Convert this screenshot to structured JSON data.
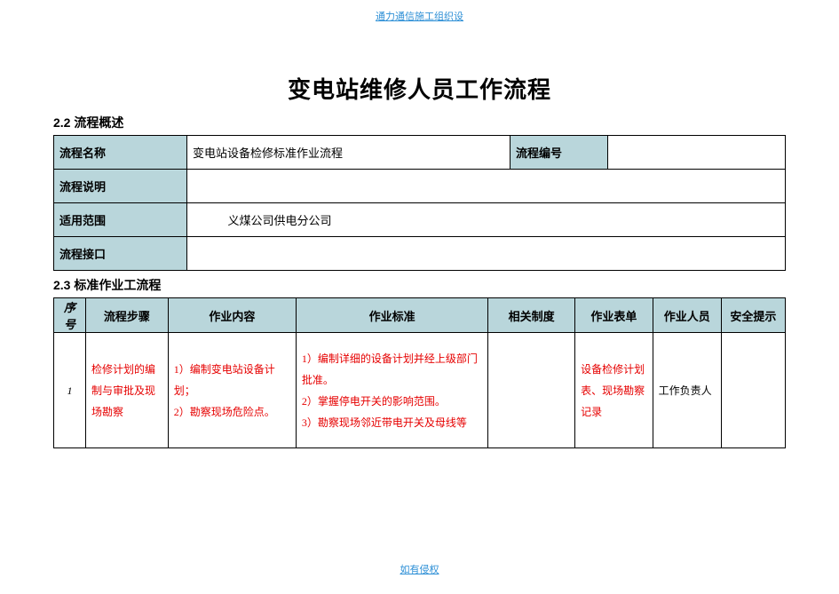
{
  "colors": {
    "header_bg": "#b9d6db",
    "link_color": "#2d8fd6",
    "red_text": "#e60000",
    "border": "#000000",
    "page_bg": "#ffffff"
  },
  "top_watermark": "通力通信施工组织设",
  "bottom_watermark": "如有侵权",
  "title": "变电站维修人员工作流程",
  "section_2_2": "2.2 流程概述",
  "overview": {
    "labels": {
      "name": "流程名称",
      "desc": "流程说明",
      "scope": "适用范围",
      "iface": "流程接口",
      "code": "流程编号"
    },
    "name_value": "变电站设备检修标准作业流程",
    "code_value": "",
    "desc_value": "",
    "scope_value": "义煤公司供电分公司",
    "iface_value": ""
  },
  "section_2_3": "2.3 标准作业工流程",
  "workflow": {
    "headers": {
      "seq": "序号",
      "step": "流程步骤",
      "work": "作业内容",
      "std": "作业标准",
      "rule": "相关制度",
      "form": "作业表单",
      "staff": "作业人员",
      "safe": "安全提示"
    },
    "rows": [
      {
        "seq": "1",
        "step": "检修计划的编制与审批及现场勘察",
        "work": "1）编制变电站设备计划；\n2）勘察现场危险点。",
        "std": "1）编制详细的设备计划并经上级部门批准。\n2）掌握停电开关的影响范围。\n3）勘察现场邻近带电开关及母线等",
        "rule": "",
        "form": "设备检修计划表、现场勘察记录",
        "staff": "工作负责人",
        "safe": ""
      }
    ]
  }
}
